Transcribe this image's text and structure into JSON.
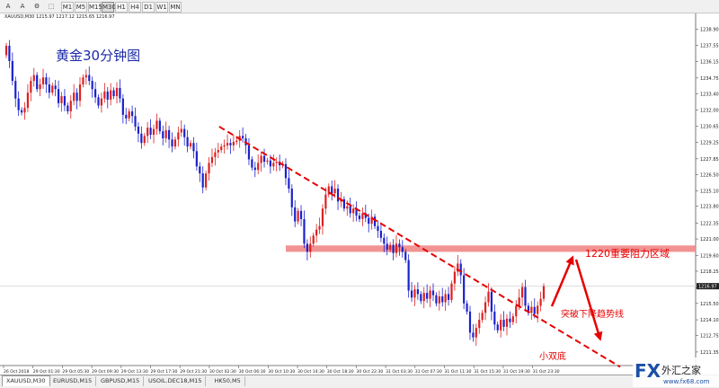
{
  "toolbar": {
    "tools": [
      "A",
      "A",
      "⚙",
      "⬚"
    ],
    "timeframes": [
      "M1",
      "M5",
      "M15",
      "M30",
      "H1",
      "H4",
      "D1",
      "W1",
      "MN"
    ],
    "active_timeframe": "M30"
  },
  "symbol_header": "XAUUSD,M30  1215.97 1217.12 1215.65 1216.97",
  "chart_title": "黄金30分钟图",
  "annotations": {
    "resistance": "1220重要阻力区域",
    "breakout": "突破下降趋势线",
    "double_bottom": "小双底"
  },
  "current_price": "1216.97",
  "tabs": [
    "XAUUSD,M30",
    "EURUSD,M15",
    "GBPUSD,M15",
    "USOIL.DEC18,M15",
    "HK50,M5"
  ],
  "active_tab": "XAUUSD,M30",
  "logo": {
    "brand": "FX",
    "cn": "外汇之家",
    "url": "www.fx68.com"
  },
  "colors": {
    "bull": "#dd2020",
    "bear": "#1a22cc",
    "resistance": "#f08080",
    "annotation": "#e60000",
    "title": "#1c2aa8"
  },
  "chart_data": {
    "type": "candlestick",
    "y_ticks": [
      "1238.90",
      "1237.55",
      "1236.15",
      "1234.75",
      "1233.40",
      "1232.00",
      "1230.65",
      "1229.25",
      "1227.85",
      "1226.50",
      "1225.10",
      "1223.80",
      "1222.35",
      "1221.00",
      "1219.60",
      "1218.25",
      "1216.85",
      "1215.50",
      "1214.10",
      "1212.75",
      "1211.35"
    ],
    "x_ticks": [
      "26 Oct 2018",
      "29 Oct 01:30",
      "29 Oct 05:30",
      "29 Oct 09:30",
      "29 Oct 13:30",
      "29 Oct 17:30",
      "29 Oct 21:30",
      "30 Oct 02:30",
      "30 Oct 06:30",
      "30 Oct 10:30",
      "30 Oct 14:30",
      "30 Oct 18:30",
      "30 Oct 22:30",
      "31 Oct 03:30",
      "31 Oct 07:30",
      "31 Oct 11:30",
      "31 Oct 15:30",
      "31 Oct 19:30",
      "31 Oct 23:30"
    ],
    "ylim": [
      1210.5,
      1239.8
    ],
    "resistance_zone": [
      1219.9,
      1220.45
    ],
    "trend_line": [
      [
        2,
        1230.6
      ],
      [
        184,
        1211.0
      ]
    ],
    "closes": [
      1237.5,
      1236.2,
      1234.5,
      1233.0,
      1232.0,
      1231.8,
      1232.2,
      1233.5,
      1234.5,
      1235.0,
      1233.8,
      1234.2,
      1234.8,
      1234.2,
      1233.5,
      1234.1,
      1233.8,
      1232.6,
      1233.2,
      1232.4,
      1231.9,
      1232.8,
      1233.5,
      1232.8,
      1234.2,
      1234.8,
      1235.0,
      1234.5,
      1233.8,
      1233.1,
      1232.4,
      1233.0,
      1233.6,
      1232.9,
      1233.7,
      1233.2,
      1233.9,
      1233.0,
      1231.6,
      1231.3,
      1231.9,
      1231.5,
      1230.6,
      1230.0,
      1229.2,
      1229.8,
      1230.5,
      1229.9,
      1230.4,
      1231.1,
      1230.2,
      1229.6,
      1230.3,
      1229.5,
      1228.9,
      1229.5,
      1230.1,
      1230.4,
      1229.7,
      1228.9,
      1229.2,
      1228.5,
      1227.2,
      1226.6,
      1225.4,
      1226.6,
      1227.5,
      1228.0,
      1228.4,
      1228.6,
      1228.9,
      1229.0,
      1229.2,
      1229.0,
      1229.3,
      1229.4,
      1229.8,
      1229.6,
      1229.0,
      1227.8,
      1227.1,
      1226.9,
      1227.5,
      1228.1,
      1227.6,
      1227.7,
      1227.2,
      1227.5,
      1227.6,
      1227.3,
      1227.4,
      1226.2,
      1225.3,
      1223.7,
      1222.5,
      1223.4,
      1222.7,
      1220.6,
      1219.9,
      1220.6,
      1221.3,
      1221.8,
      1222.1,
      1223.6,
      1224.8,
      1225.5,
      1224.9,
      1225.3,
      1224.2,
      1224.4,
      1223.6,
      1223.8,
      1223.2,
      1223.6,
      1223.0,
      1222.7,
      1223.2,
      1222.8,
      1222.3,
      1222.9,
      1222.1,
      1221.7,
      1221.1,
      1220.6,
      1220.1,
      1220.5,
      1219.8,
      1220.6,
      1220.3,
      1219.9,
      1219.2,
      1216.6,
      1216.0,
      1216.7,
      1216.3,
      1215.7,
      1216.4,
      1215.9,
      1216.6,
      1216.2,
      1215.5,
      1216.1,
      1215.6,
      1216.3,
      1215.8,
      1217.2,
      1218.2,
      1218.9,
      1217.9,
      1215.5,
      1214.8,
      1213.0,
      1212.6,
      1213.4,
      1214.1,
      1214.7,
      1215.6,
      1216.5,
      1214.8,
      1213.7,
      1213.2,
      1214.1,
      1213.5,
      1214.2,
      1213.9,
      1214.4,
      1215.3,
      1216.0,
      1216.9,
      1215.3,
      1214.7,
      1215.2,
      1214.6,
      1215.3,
      1215.9,
      1216.97
    ]
  }
}
